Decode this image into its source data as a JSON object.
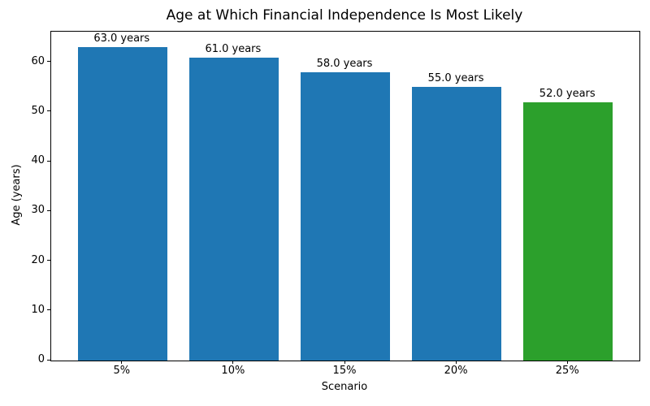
{
  "chart_data": {
    "type": "bar",
    "title": "Age at Which Financial Independence Is Most Likely",
    "xlabel": "Scenario",
    "ylabel": "Age (years)",
    "categories": [
      "5%",
      "10%",
      "15%",
      "20%",
      "25%"
    ],
    "values": [
      63.0,
      61.0,
      58.0,
      55.0,
      52.0
    ],
    "bar_labels": [
      "63.0 years",
      "61.0 years",
      "58.0 years",
      "55.0 years",
      "52.0 years"
    ],
    "bar_colors": [
      "#1f77b4",
      "#1f77b4",
      "#1f77b4",
      "#1f77b4",
      "#2ca02c"
    ],
    "default_color": "#1f77b4",
    "highlight_color": "#2ca02c",
    "ylim": [
      0,
      66.15
    ],
    "yticks": [
      0,
      10,
      20,
      30,
      40,
      50,
      60
    ],
    "grid": false,
    "legend": null
  }
}
